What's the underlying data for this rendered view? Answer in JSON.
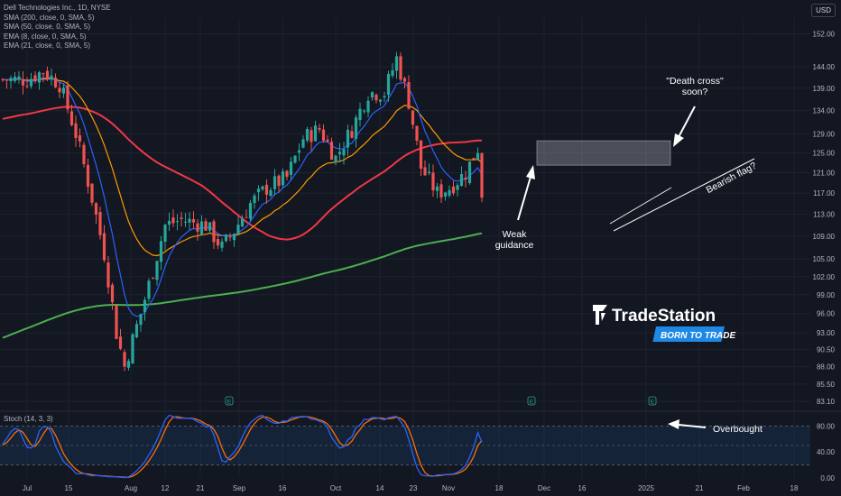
{
  "header": {
    "title": "Dell Technologies Inc., 1D, NYSE",
    "indicators": [
      "SMA (200, close, 0, SMA, 5)",
      "SMA (50, close, 0, SMA, 5)",
      "EMA (8, close, 0, SMA, 5)",
      "EMA (21, close, 0, SMA, 5)"
    ],
    "currency": "USD"
  },
  "stoch": {
    "label": "Stoch (14, 3, 3)"
  },
  "logo": {
    "name": "TradeStation",
    "tagline": "BORN TO TRADE"
  },
  "colors": {
    "up": "#26a69a",
    "down": "#ef5350",
    "sma200": "#4caf50",
    "sma50": "#f23645",
    "ema8": "#2962ff",
    "ema21": "#ff9800",
    "stochK": "#2962ff",
    "stochD": "#ff6d00"
  },
  "chart_data": {
    "type": "candlestick",
    "x_ticks": [
      "Jul",
      "15",
      "Aug",
      "12",
      "21",
      "Sep",
      "16",
      "Oct",
      "14",
      "23",
      "Nov",
      "18",
      "Dec",
      "16",
      "2025",
      "21",
      "Feb",
      "18"
    ],
    "y_ticks": [
      "152.00",
      "144.00",
      "139.00",
      "134.00",
      "129.00",
      "125.00",
      "121.00",
      "117.00",
      "113.00",
      "109.00",
      "105.00",
      "102.00",
      "99.00",
      "96.00",
      "93.00",
      "90.50",
      "88.00",
      "85.50",
      "83.10"
    ],
    "y_scale": "log",
    "stoch_ticks": [
      "80.00",
      "40.00",
      "0.00"
    ],
    "annotations": {
      "death_cross": "\"Death cross\" soon?",
      "weak_guidance": "Weak guidance",
      "bearish_flag": "Bearish flag?",
      "overbought": "Overbought"
    },
    "earnings_markers": [
      "E",
      "E",
      "E"
    ],
    "anchors": [
      [
        0,
        141
      ],
      [
        6,
        141
      ],
      [
        10,
        143
      ],
      [
        14,
        140
      ],
      [
        18,
        129
      ],
      [
        22,
        116
      ],
      [
        25,
        106
      ],
      [
        28,
        93
      ],
      [
        30,
        88
      ],
      [
        34,
        96
      ],
      [
        37,
        103
      ],
      [
        40,
        111
      ],
      [
        44,
        112
      ],
      [
        50,
        111
      ],
      [
        54,
        107
      ],
      [
        57,
        110
      ],
      [
        61,
        115
      ],
      [
        65,
        118
      ],
      [
        70,
        120
      ],
      [
        74,
        128
      ],
      [
        78,
        130
      ],
      [
        82,
        124
      ],
      [
        86,
        130
      ],
      [
        90,
        138
      ],
      [
        94,
        138
      ],
      [
        97,
        146
      ],
      [
        100,
        136
      ],
      [
        103,
        122
      ],
      [
        107,
        117
      ],
      [
        110,
        118
      ],
      [
        114,
        121
      ],
      [
        117,
        126
      ],
      [
        118,
        117
      ]
    ]
  }
}
